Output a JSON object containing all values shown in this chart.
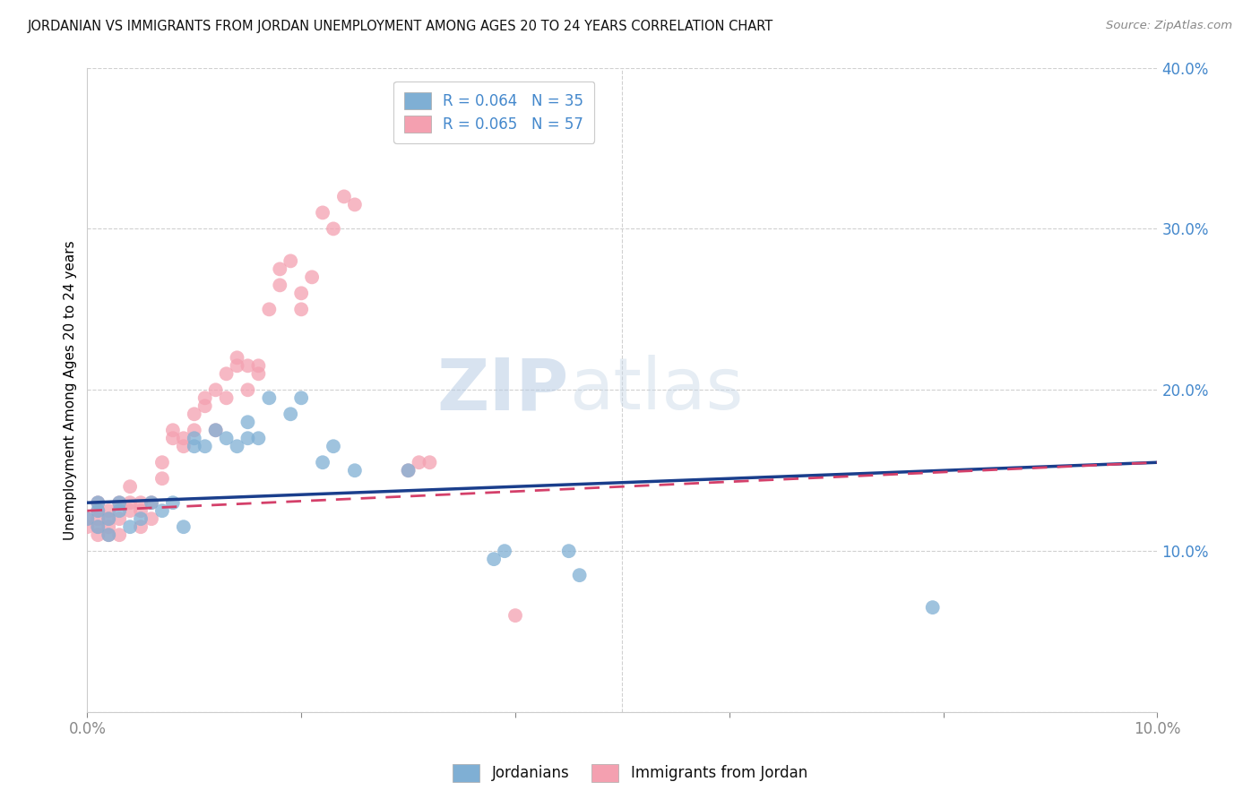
{
  "title": "JORDANIAN VS IMMIGRANTS FROM JORDAN UNEMPLOYMENT AMONG AGES 20 TO 24 YEARS CORRELATION CHART",
  "source": "Source: ZipAtlas.com",
  "ylabel": "Unemployment Among Ages 20 to 24 years",
  "xlim": [
    0.0,
    0.1
  ],
  "ylim": [
    0.0,
    0.4
  ],
  "legend1_label": "R = 0.064   N = 35",
  "legend2_label": "R = 0.065   N = 57",
  "legend_group": "Jordanians",
  "legend_group2": "Immigrants from Jordan",
  "watermark_zip": "ZIP",
  "watermark_atlas": "atlas",
  "blue_color": "#7fafd4",
  "pink_color": "#f4a0b0",
  "line_blue": "#1a3e8c",
  "line_pink": "#d4406a",
  "jordanians_x": [
    0.0,
    0.001,
    0.001,
    0.001,
    0.002,
    0.002,
    0.003,
    0.003,
    0.004,
    0.005,
    0.006,
    0.007,
    0.008,
    0.009,
    0.01,
    0.01,
    0.011,
    0.012,
    0.013,
    0.014,
    0.015,
    0.015,
    0.016,
    0.017,
    0.019,
    0.02,
    0.022,
    0.023,
    0.025,
    0.03,
    0.038,
    0.039,
    0.045,
    0.046,
    0.079
  ],
  "jordanians_y": [
    0.12,
    0.115,
    0.125,
    0.13,
    0.12,
    0.11,
    0.125,
    0.13,
    0.115,
    0.12,
    0.13,
    0.125,
    0.13,
    0.115,
    0.165,
    0.17,
    0.165,
    0.175,
    0.17,
    0.165,
    0.17,
    0.18,
    0.17,
    0.195,
    0.185,
    0.195,
    0.155,
    0.165,
    0.15,
    0.15,
    0.095,
    0.1,
    0.1,
    0.085,
    0.065
  ],
  "immigrants_x": [
    0.0,
    0.0,
    0.001,
    0.001,
    0.001,
    0.001,
    0.001,
    0.002,
    0.002,
    0.002,
    0.002,
    0.003,
    0.003,
    0.003,
    0.004,
    0.004,
    0.004,
    0.005,
    0.005,
    0.005,
    0.006,
    0.006,
    0.007,
    0.007,
    0.008,
    0.008,
    0.009,
    0.009,
    0.01,
    0.01,
    0.011,
    0.011,
    0.012,
    0.012,
    0.013,
    0.013,
    0.014,
    0.014,
    0.015,
    0.015,
    0.016,
    0.016,
    0.017,
    0.018,
    0.018,
    0.019,
    0.02,
    0.02,
    0.021,
    0.022,
    0.023,
    0.024,
    0.025,
    0.03,
    0.031,
    0.032,
    0.04
  ],
  "immigrants_y": [
    0.115,
    0.12,
    0.11,
    0.12,
    0.115,
    0.125,
    0.13,
    0.11,
    0.115,
    0.12,
    0.125,
    0.11,
    0.12,
    0.13,
    0.125,
    0.13,
    0.14,
    0.115,
    0.125,
    0.13,
    0.12,
    0.13,
    0.145,
    0.155,
    0.17,
    0.175,
    0.165,
    0.17,
    0.175,
    0.185,
    0.19,
    0.195,
    0.2,
    0.175,
    0.195,
    0.21,
    0.22,
    0.215,
    0.215,
    0.2,
    0.21,
    0.215,
    0.25,
    0.275,
    0.265,
    0.28,
    0.25,
    0.26,
    0.27,
    0.31,
    0.3,
    0.32,
    0.315,
    0.15,
    0.155,
    0.155,
    0.06
  ],
  "blue_line_x0": 0.0,
  "blue_line_y0": 0.13,
  "blue_line_x1": 0.1,
  "blue_line_y1": 0.155,
  "pink_line_x0": 0.0,
  "pink_line_y0": 0.125,
  "pink_line_x1": 0.1,
  "pink_line_y1": 0.155
}
